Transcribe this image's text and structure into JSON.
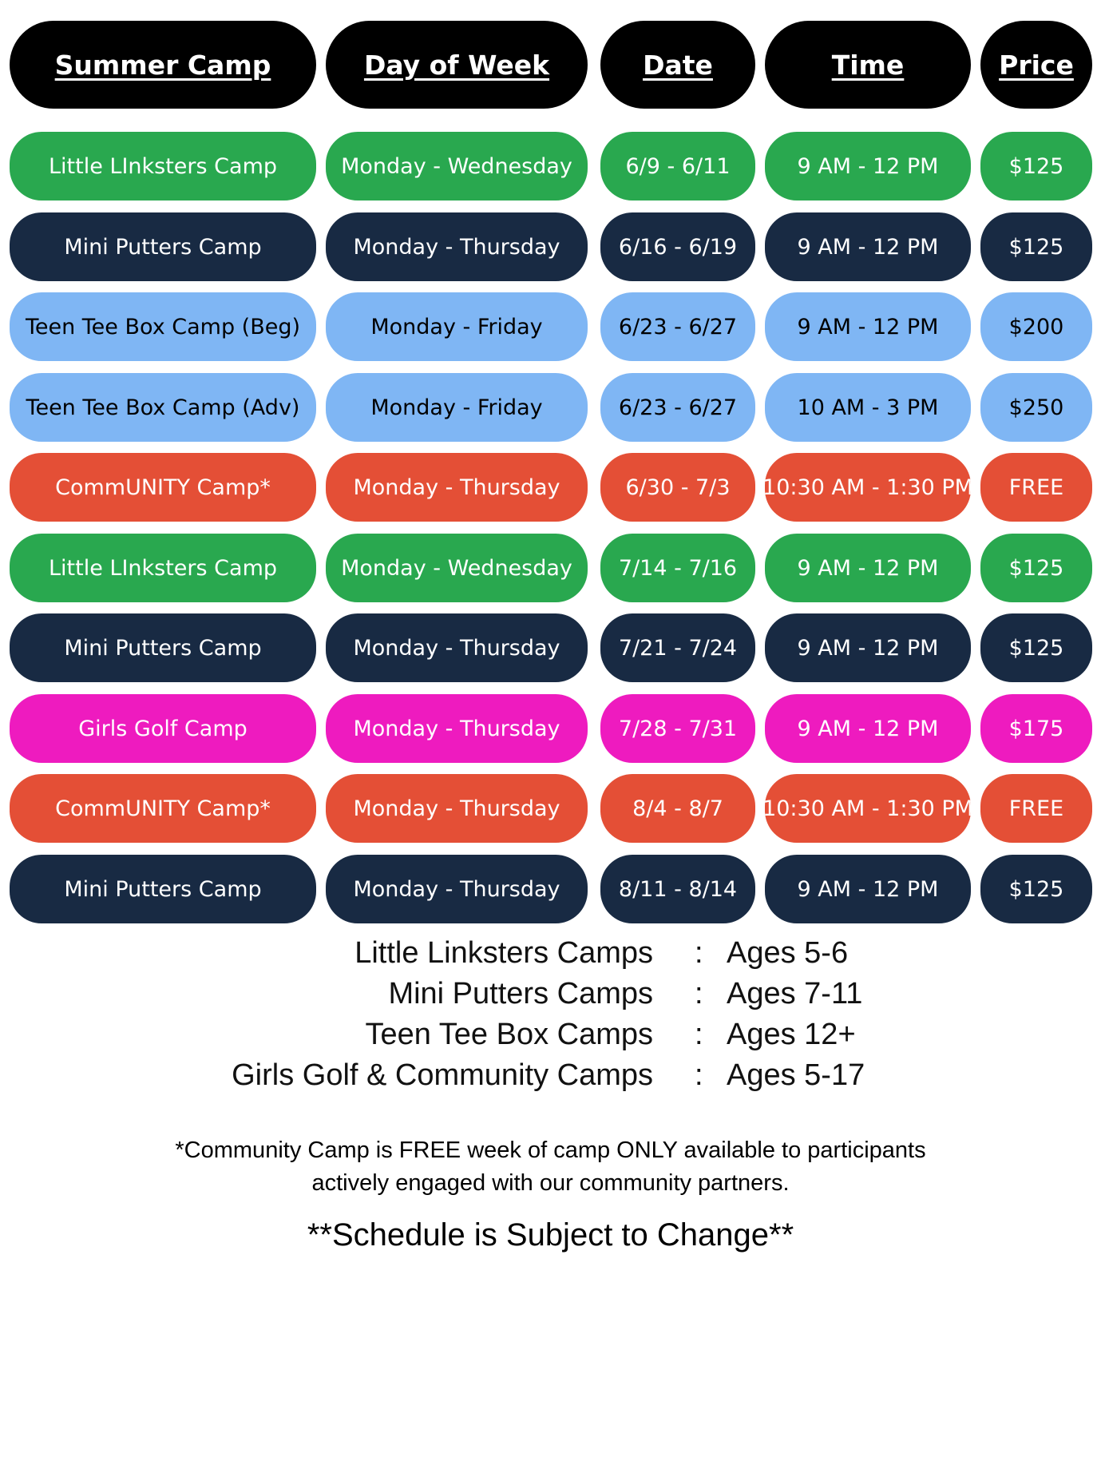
{
  "headers": {
    "camp": "Summer Camp",
    "day": "Day of Week",
    "date": "Date",
    "time": "Time",
    "price": "Price"
  },
  "colors": {
    "green": "#29A84F",
    "navy": "#182A43",
    "lightblue": "#7FB6F4",
    "orange": "#E44F36",
    "magenta": "#EE1BBF",
    "header": "#000000"
  },
  "rows": [
    {
      "camp": "Little LInksters Camp",
      "day": "Monday - Wednesday",
      "date": "6/9 - 6/11",
      "time": "9 AM - 12 PM",
      "price": "$125",
      "color": "#29A84F",
      "text_color": "#FFFFFF"
    },
    {
      "camp": "Mini Putters Camp",
      "day": "Monday - Thursday",
      "date": "6/16 - 6/19",
      "time": "9 AM - 12 PM",
      "price": "$125",
      "color": "#182A43",
      "text_color": "#FFFFFF"
    },
    {
      "camp": "Teen Tee Box Camp (Beg)",
      "day": "Monday - Friday",
      "date": "6/23 - 6/27",
      "time": "9 AM - 12 PM",
      "price": "$200",
      "color": "#7FB6F4",
      "text_color": "#000000"
    },
    {
      "camp": "Teen Tee Box Camp (Adv)",
      "day": "Monday - Friday",
      "date": "6/23 - 6/27",
      "time": "10 AM - 3 PM",
      "price": "$250",
      "color": "#7FB6F4",
      "text_color": "#000000"
    },
    {
      "camp": "CommUNITY Camp*",
      "day": "Monday - Thursday",
      "date": "6/30 - 7/3",
      "time": "10:30 AM - 1:30 PM",
      "price": "FREE",
      "color": "#E44F36",
      "text_color": "#FFFFFF"
    },
    {
      "camp": "Little LInksters Camp",
      "day": "Monday - Wednesday",
      "date": "7/14 - 7/16",
      "time": "9 AM - 12 PM",
      "price": "$125",
      "color": "#29A84F",
      "text_color": "#FFFFFF"
    },
    {
      "camp": "Mini Putters Camp",
      "day": "Monday - Thursday",
      "date": "7/21 - 7/24",
      "time": "9 AM - 12 PM",
      "price": "$125",
      "color": "#182A43",
      "text_color": "#FFFFFF"
    },
    {
      "camp": "Girls Golf Camp",
      "day": "Monday - Thursday",
      "date": "7/28 - 7/31",
      "time": "9 AM - 12 PM",
      "price": "$175",
      "color": "#EE1BBF",
      "text_color": "#FFFFFF"
    },
    {
      "camp": "CommUNITY Camp*",
      "day": "Monday - Thursday",
      "date": "8/4 - 8/7",
      "time": "10:30 AM - 1:30 PM",
      "price": "FREE",
      "color": "#E44F36",
      "text_color": "#FFFFFF"
    },
    {
      "camp": "Mini Putters Camp",
      "day": "Monday - Thursday",
      "date": "8/11 - 8/14",
      "time": "9 AM - 12 PM",
      "price": "$125",
      "color": "#182A43",
      "text_color": "#FFFFFF"
    }
  ],
  "ages": [
    {
      "name": "Little Linksters Camps",
      "sep": ":",
      "value": "Ages 5-6"
    },
    {
      "name": "Mini Putters Camps",
      "sep": ":",
      "value": "Ages 7-11"
    },
    {
      "name": "Teen Tee Box Camps",
      "sep": ":",
      "value": "Ages 12+"
    },
    {
      "name": "Girls Golf & Community Camps",
      "sep": ":",
      "value": "Ages 5-17"
    }
  ],
  "footnote": {
    "line1": "*Community Camp is FREE week of camp ONLY available to participants",
    "line2": "actively engaged with our community partners."
  },
  "disclaimer": "**Schedule is Subject to Change**"
}
